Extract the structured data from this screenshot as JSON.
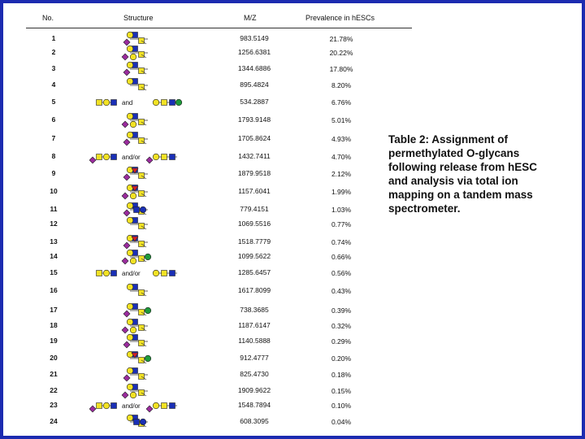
{
  "table": {
    "headers": {
      "no": "No.",
      "structure": "Structure",
      "mz": "M/Z",
      "prevalence": "Prevalence in hESCs"
    },
    "rows": [
      {
        "no": "1",
        "mz": "983.5149",
        "prevalence": "21.78%",
        "conn": ""
      },
      {
        "no": "2",
        "mz": "1256.6381",
        "prevalence": "20.22%",
        "conn": ""
      },
      {
        "no": "3",
        "mz": "1344.6886",
        "prevalence": "17.80%",
        "conn": ""
      },
      {
        "no": "4",
        "mz": "895.4824",
        "prevalence": "8.20%",
        "conn": ""
      },
      {
        "no": "5",
        "mz": "534.2887",
        "prevalence": "6.76%",
        "conn": "and"
      },
      {
        "no": "6",
        "mz": "1793.9148",
        "prevalence": "5.01%",
        "conn": ""
      },
      {
        "no": "7",
        "mz": "1705.8624",
        "prevalence": "4.93%",
        "conn": ""
      },
      {
        "no": "8",
        "mz": "1432.7411",
        "prevalence": "4.70%",
        "conn": "and/or"
      },
      {
        "no": "9",
        "mz": "1879.9518",
        "prevalence": "2.12%",
        "conn": ""
      },
      {
        "no": "10",
        "mz": "1157.6041",
        "prevalence": "1.99%",
        "conn": ""
      },
      {
        "no": "11",
        "mz": "779.4151",
        "prevalence": "1.03%",
        "conn": ""
      },
      {
        "no": "12",
        "mz": "1069.5516",
        "prevalence": "0.77%",
        "conn": ""
      },
      {
        "no": "13",
        "mz": "1518.7779",
        "prevalence": "0.74%",
        "conn": ""
      },
      {
        "no": "14",
        "mz": "1099.5622",
        "prevalence": "0.66%",
        "conn": ""
      },
      {
        "no": "15",
        "mz": "1285.6457",
        "prevalence": "0.56%",
        "conn": "and/or"
      },
      {
        "no": "16",
        "mz": "1617.8099",
        "prevalence": "0.43%",
        "conn": ""
      },
      {
        "no": "17",
        "mz": "738.3685",
        "prevalence": "0.39%",
        "conn": ""
      },
      {
        "no": "18",
        "mz": "1187.6147",
        "prevalence": "0.32%",
        "conn": ""
      },
      {
        "no": "19",
        "mz": "1140.5888",
        "prevalence": "0.29%",
        "conn": ""
      },
      {
        "no": "20",
        "mz": "912.4777",
        "prevalence": "0.20%",
        "conn": ""
      },
      {
        "no": "21",
        "mz": "825.4730",
        "prevalence": "0.18%",
        "conn": ""
      },
      {
        "no": "22",
        "mz": "1909.9622",
        "prevalence": "0.15%",
        "conn": ""
      },
      {
        "no": "23",
        "mz": "1548.7894",
        "prevalence": "0.10%",
        "conn": "and/or"
      },
      {
        "no": "24",
        "mz": "608.3095",
        "prevalence": "0.04%",
        "conn": ""
      }
    ]
  },
  "caption": {
    "lines": [
      "Table 2: Assignment of",
      "permethylated O-glycans",
      "following release from hESC",
      "and analysis via total ion",
      "mapping on a tandem mass",
      "spectrometer."
    ]
  },
  "colors": {
    "frame": "#1c2bb0",
    "galnac_yellow": "#f2e224",
    "glcnac_blue": "#1a2fb5",
    "gal_yellow": "#f2e224",
    "neuac_purple": "#9b2b9e",
    "fuc_red": "#d1202a",
    "man_green": "#1e9a3a"
  }
}
